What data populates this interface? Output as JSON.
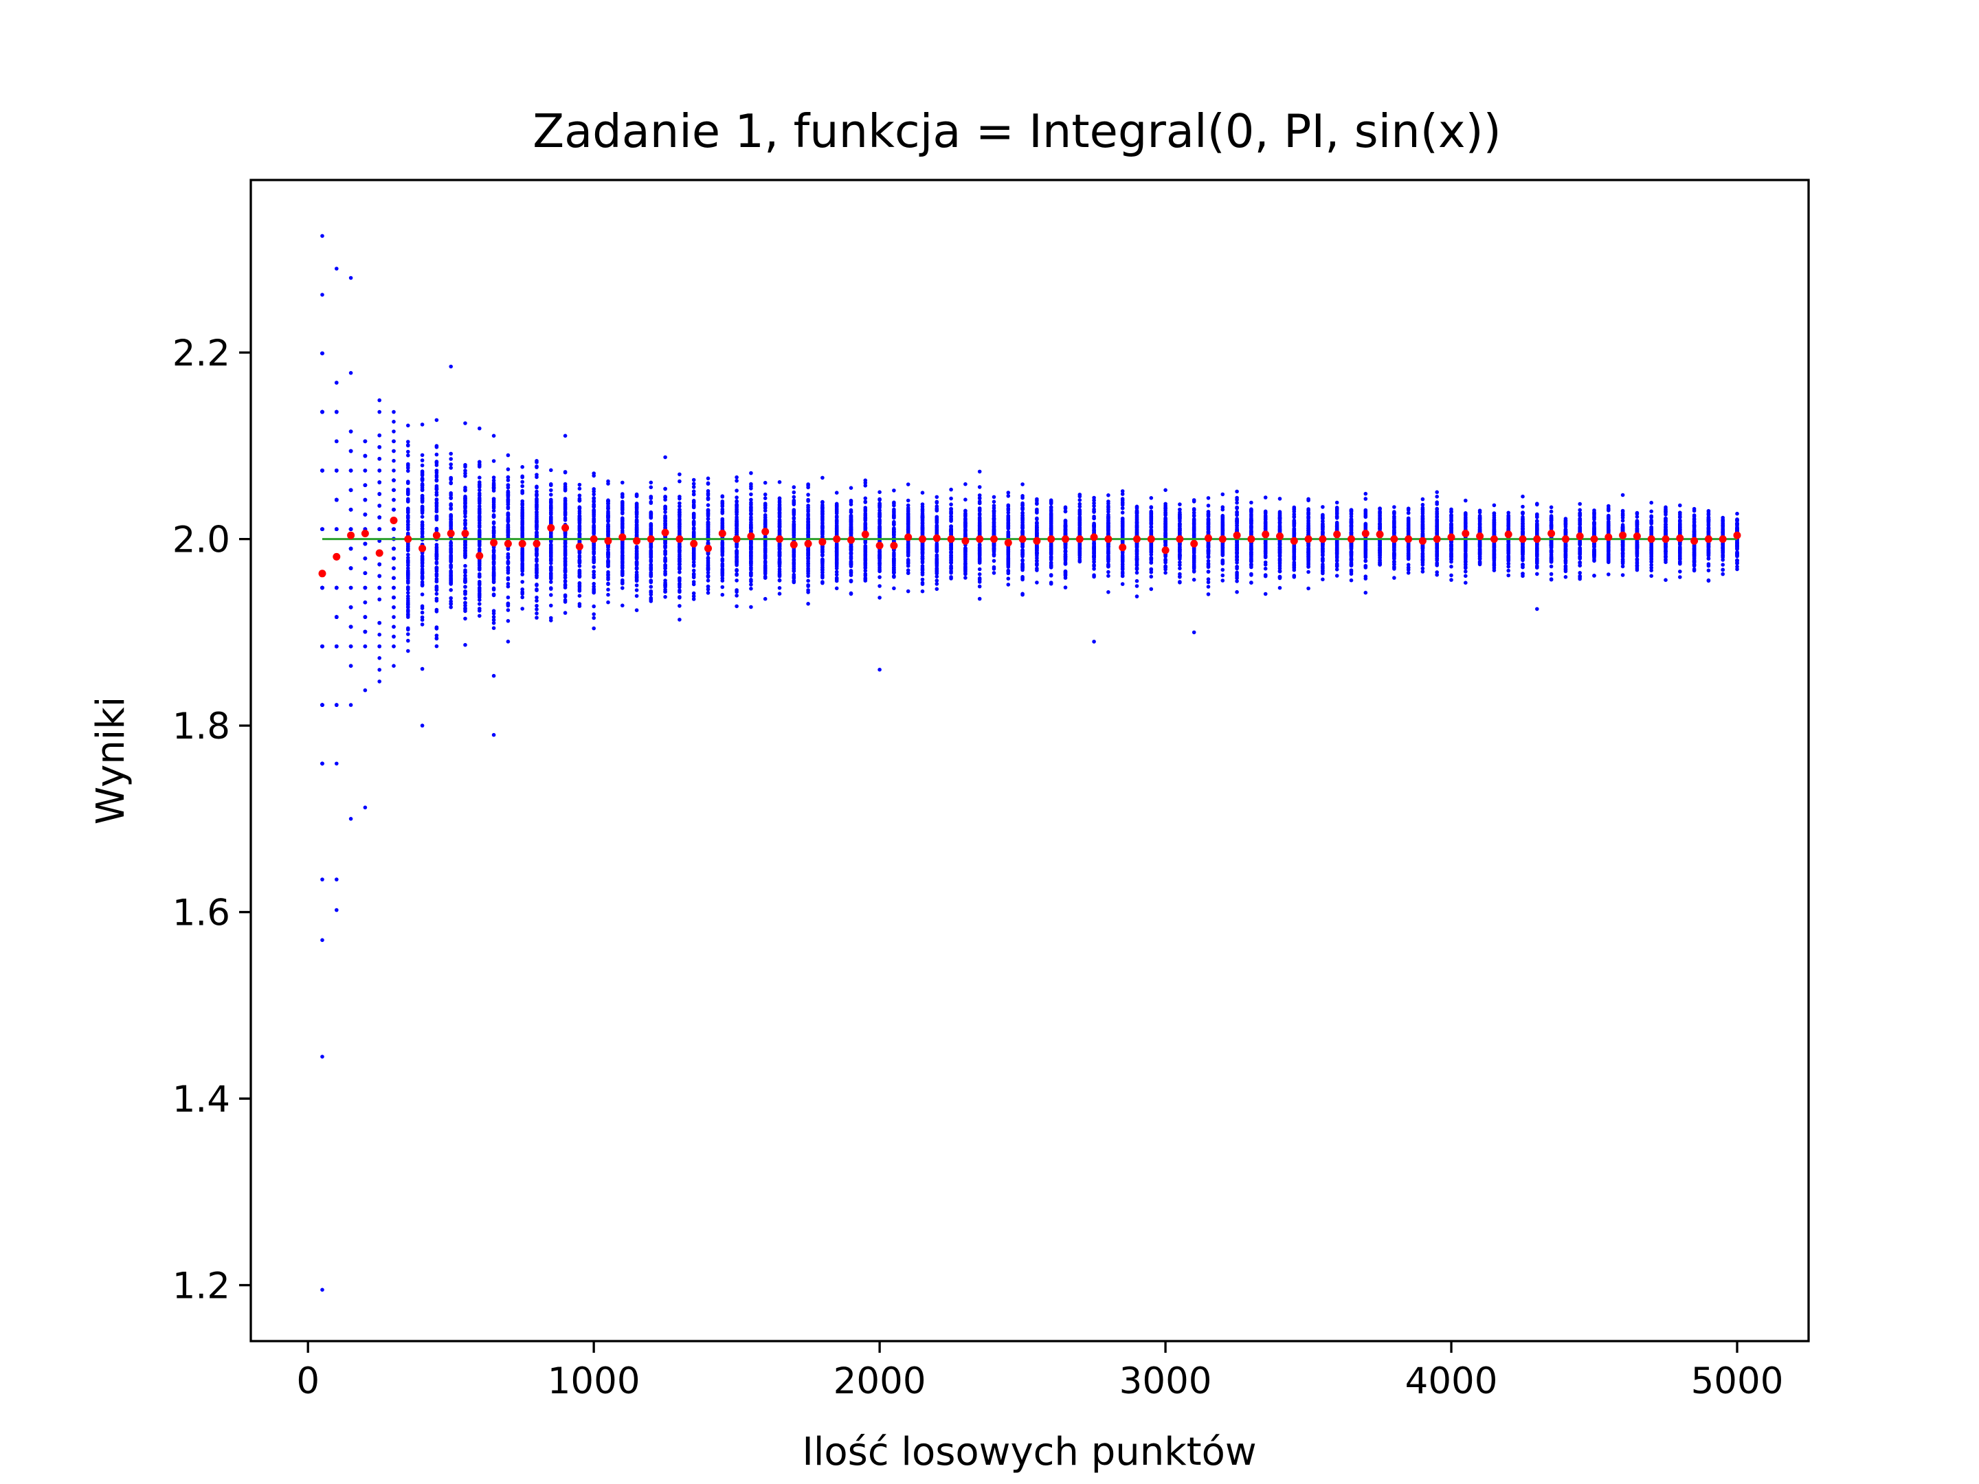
{
  "chart_data": {
    "type": "scatter",
    "title": "Zadanie 1, funkcja = Integral(0, PI, sin(x))",
    "xlabel": "Ilość losowych punktów",
    "ylabel": "Wyniki",
    "xlim": [
      -200,
      5250
    ],
    "ylim": [
      1.14,
      2.385
    ],
    "xticks": [
      0,
      1000,
      2000,
      3000,
      4000,
      5000
    ],
    "yticks": [
      1.2,
      1.4,
      1.6,
      1.8,
      2.0,
      2.2
    ],
    "xtick_labels": [
      "0",
      "1000",
      "2000",
      "3000",
      "4000",
      "5000"
    ],
    "ytick_labels": [
      "1.2",
      "1.4",
      "1.6",
      "1.8",
      "2.0",
      "2.2"
    ],
    "grid": false,
    "reference_line": {
      "y": 2.0,
      "x_range": [
        50,
        5000
      ],
      "color": "#2ca02c"
    },
    "series": [
      {
        "color": "#0000ff",
        "marker": "point",
        "description_hint": "100 Monte Carlo estimates per sample size (x = 50..5000 step 50)",
        "x_start": 50,
        "x_step": 50,
        "x_count": 100,
        "runs_per_x": 100,
        "extremes": [
          {
            "x": 50,
            "y": 2.325
          },
          {
            "x": 50,
            "y": 1.195
          },
          {
            "x": 50,
            "y": 1.445
          },
          {
            "x": 50,
            "y": 1.57
          },
          {
            "x": 50,
            "y": 1.635
          },
          {
            "x": 100,
            "y": 2.29
          },
          {
            "x": 100,
            "y": 1.635
          },
          {
            "x": 150,
            "y": 2.28
          },
          {
            "x": 150,
            "y": 1.7
          },
          {
            "x": 400,
            "y": 1.8
          },
          {
            "x": 650,
            "y": 1.79
          },
          {
            "x": 500,
            "y": 2.185
          },
          {
            "x": 2000,
            "y": 1.86
          },
          {
            "x": 2750,
            "y": 1.89
          },
          {
            "x": 3100,
            "y": 1.9
          },
          {
            "x": 4300,
            "y": 1.925
          }
        ]
      },
      {
        "color": "#ff0000",
        "marker": "point",
        "description_hint": "mean of runs per sample size",
        "points": [
          {
            "x": 50,
            "y": 1.963
          },
          {
            "x": 100,
            "y": 1.981
          },
          {
            "x": 150,
            "y": 2.004
          },
          {
            "x": 200,
            "y": 2.006
          },
          {
            "x": 250,
            "y": 1.985
          },
          {
            "x": 300,
            "y": 2.02
          },
          {
            "x": 350,
            "y": 2.0
          },
          {
            "x": 400,
            "y": 1.99
          },
          {
            "x": 450,
            "y": 2.004
          },
          {
            "x": 500,
            "y": 2.006
          },
          {
            "x": 550,
            "y": 2.006
          },
          {
            "x": 600,
            "y": 1.982
          },
          {
            "x": 650,
            "y": 1.996
          },
          {
            "x": 700,
            "y": 1.995
          },
          {
            "x": 750,
            "y": 1.995
          },
          {
            "x": 800,
            "y": 1.995
          },
          {
            "x": 850,
            "y": 2.012
          },
          {
            "x": 900,
            "y": 2.012
          },
          {
            "x": 950,
            "y": 1.992
          },
          {
            "x": 1000,
            "y": 2.0
          },
          {
            "x": 1050,
            "y": 1.998
          },
          {
            "x": 1100,
            "y": 2.002
          },
          {
            "x": 1150,
            "y": 1.998
          },
          {
            "x": 1200,
            "y": 2.0
          },
          {
            "x": 1250,
            "y": 2.007
          },
          {
            "x": 1300,
            "y": 2.0
          },
          {
            "x": 1350,
            "y": 1.995
          },
          {
            "x": 1400,
            "y": 1.99
          },
          {
            "x": 1450,
            "y": 2.006
          },
          {
            "x": 1500,
            "y": 2.0
          },
          {
            "x": 1550,
            "y": 2.003
          },
          {
            "x": 1600,
            "y": 2.008
          },
          {
            "x": 1650,
            "y": 2.0
          },
          {
            "x": 1700,
            "y": 1.994
          },
          {
            "x": 1750,
            "y": 1.995
          },
          {
            "x": 1800,
            "y": 1.997
          },
          {
            "x": 1850,
            "y": 2.0
          },
          {
            "x": 1900,
            "y": 1.999
          },
          {
            "x": 1950,
            "y": 2.005
          },
          {
            "x": 2000,
            "y": 1.993
          },
          {
            "x": 2050,
            "y": 1.993
          },
          {
            "x": 2100,
            "y": 2.002
          },
          {
            "x": 2150,
            "y": 2.0
          },
          {
            "x": 2200,
            "y": 2.001
          },
          {
            "x": 2250,
            "y": 2.0
          },
          {
            "x": 2300,
            "y": 1.998
          },
          {
            "x": 2350,
            "y": 2.0
          },
          {
            "x": 2400,
            "y": 2.0
          },
          {
            "x": 2450,
            "y": 1.996
          },
          {
            "x": 2500,
            "y": 2.0
          },
          {
            "x": 2550,
            "y": 1.998
          },
          {
            "x": 2600,
            "y": 2.0
          },
          {
            "x": 2650,
            "y": 2.0
          },
          {
            "x": 2700,
            "y": 2.0
          },
          {
            "x": 2750,
            "y": 2.002
          },
          {
            "x": 2800,
            "y": 2.0
          },
          {
            "x": 2850,
            "y": 1.991
          },
          {
            "x": 2900,
            "y": 2.0
          },
          {
            "x": 2950,
            "y": 2.0
          },
          {
            "x": 3000,
            "y": 1.988
          },
          {
            "x": 3050,
            "y": 2.0
          },
          {
            "x": 3100,
            "y": 1.995
          },
          {
            "x": 3150,
            "y": 2.001
          },
          {
            "x": 3200,
            "y": 2.0
          },
          {
            "x": 3250,
            "y": 2.004
          },
          {
            "x": 3300,
            "y": 2.0
          },
          {
            "x": 3350,
            "y": 2.005
          },
          {
            "x": 3400,
            "y": 2.003
          },
          {
            "x": 3450,
            "y": 1.998
          },
          {
            "x": 3500,
            "y": 2.0
          },
          {
            "x": 3550,
            "y": 2.0
          },
          {
            "x": 3600,
            "y": 2.005
          },
          {
            "x": 3650,
            "y": 2.0
          },
          {
            "x": 3700,
            "y": 2.006
          },
          {
            "x": 3750,
            "y": 2.005
          },
          {
            "x": 3800,
            "y": 2.0
          },
          {
            "x": 3850,
            "y": 2.0
          },
          {
            "x": 3900,
            "y": 1.998
          },
          {
            "x": 3950,
            "y": 2.0
          },
          {
            "x": 4000,
            "y": 2.002
          },
          {
            "x": 4050,
            "y": 2.006
          },
          {
            "x": 4100,
            "y": 2.003
          },
          {
            "x": 4150,
            "y": 2.0
          },
          {
            "x": 4200,
            "y": 2.005
          },
          {
            "x": 4250,
            "y": 2.0
          },
          {
            "x": 4300,
            "y": 2.0
          },
          {
            "x": 4350,
            "y": 2.006
          },
          {
            "x": 4400,
            "y": 2.0
          },
          {
            "x": 4450,
            "y": 2.003
          },
          {
            "x": 4500,
            "y": 2.0
          },
          {
            "x": 4550,
            "y": 2.002
          },
          {
            "x": 4600,
            "y": 2.004
          },
          {
            "x": 4650,
            "y": 2.003
          },
          {
            "x": 4700,
            "y": 2.0
          },
          {
            "x": 4750,
            "y": 2.0
          },
          {
            "x": 4800,
            "y": 2.001
          },
          {
            "x": 4850,
            "y": 1.998
          },
          {
            "x": 4900,
            "y": 2.0
          },
          {
            "x": 4950,
            "y": 2.0
          },
          {
            "x": 5000,
            "y": 2.004
          }
        ]
      }
    ]
  }
}
